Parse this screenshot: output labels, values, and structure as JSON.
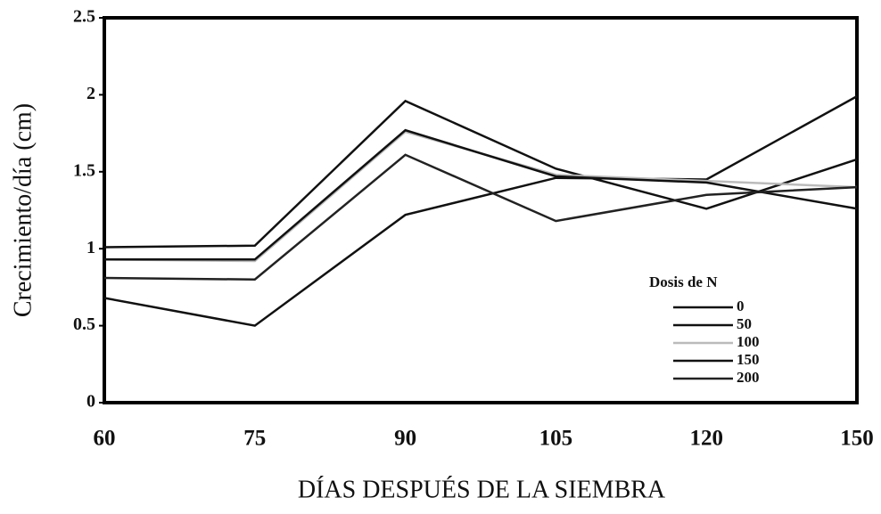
{
  "chart_data": {
    "type": "line",
    "x_label": "DÍAS DESPUÉS DE LA SIEMBRA",
    "y_label": "Crecimiento/día (cm)",
    "legend_title": "Dosis de N",
    "legend": "lower right",
    "categories": [
      "60",
      "75",
      "90",
      "105",
      "120",
      "150"
    ],
    "series": [
      {
        "name": "0",
        "color": "#111111",
        "values": [
          0.68,
          0.5,
          1.22,
          1.46,
          1.45,
          1.99
        ]
      },
      {
        "name": "50",
        "color": "#111111",
        "values": [
          1.01,
          1.02,
          1.96,
          1.52,
          1.26,
          1.58
        ]
      },
      {
        "name": "100",
        "color": "#bbbbbb",
        "values": [
          0.93,
          0.92,
          1.76,
          1.48,
          1.44,
          1.4
        ]
      },
      {
        "name": "150",
        "color": "#111111",
        "values": [
          0.93,
          0.93,
          1.77,
          1.47,
          1.43,
          1.26
        ]
      },
      {
        "name": "200",
        "color": "#222222",
        "values": [
          0.81,
          0.8,
          1.61,
          1.18,
          1.35,
          1.4
        ]
      }
    ],
    "ylim": [
      0,
      2.5
    ],
    "yticks": [
      0,
      0.5,
      1,
      1.5,
      2,
      2.5
    ]
  }
}
